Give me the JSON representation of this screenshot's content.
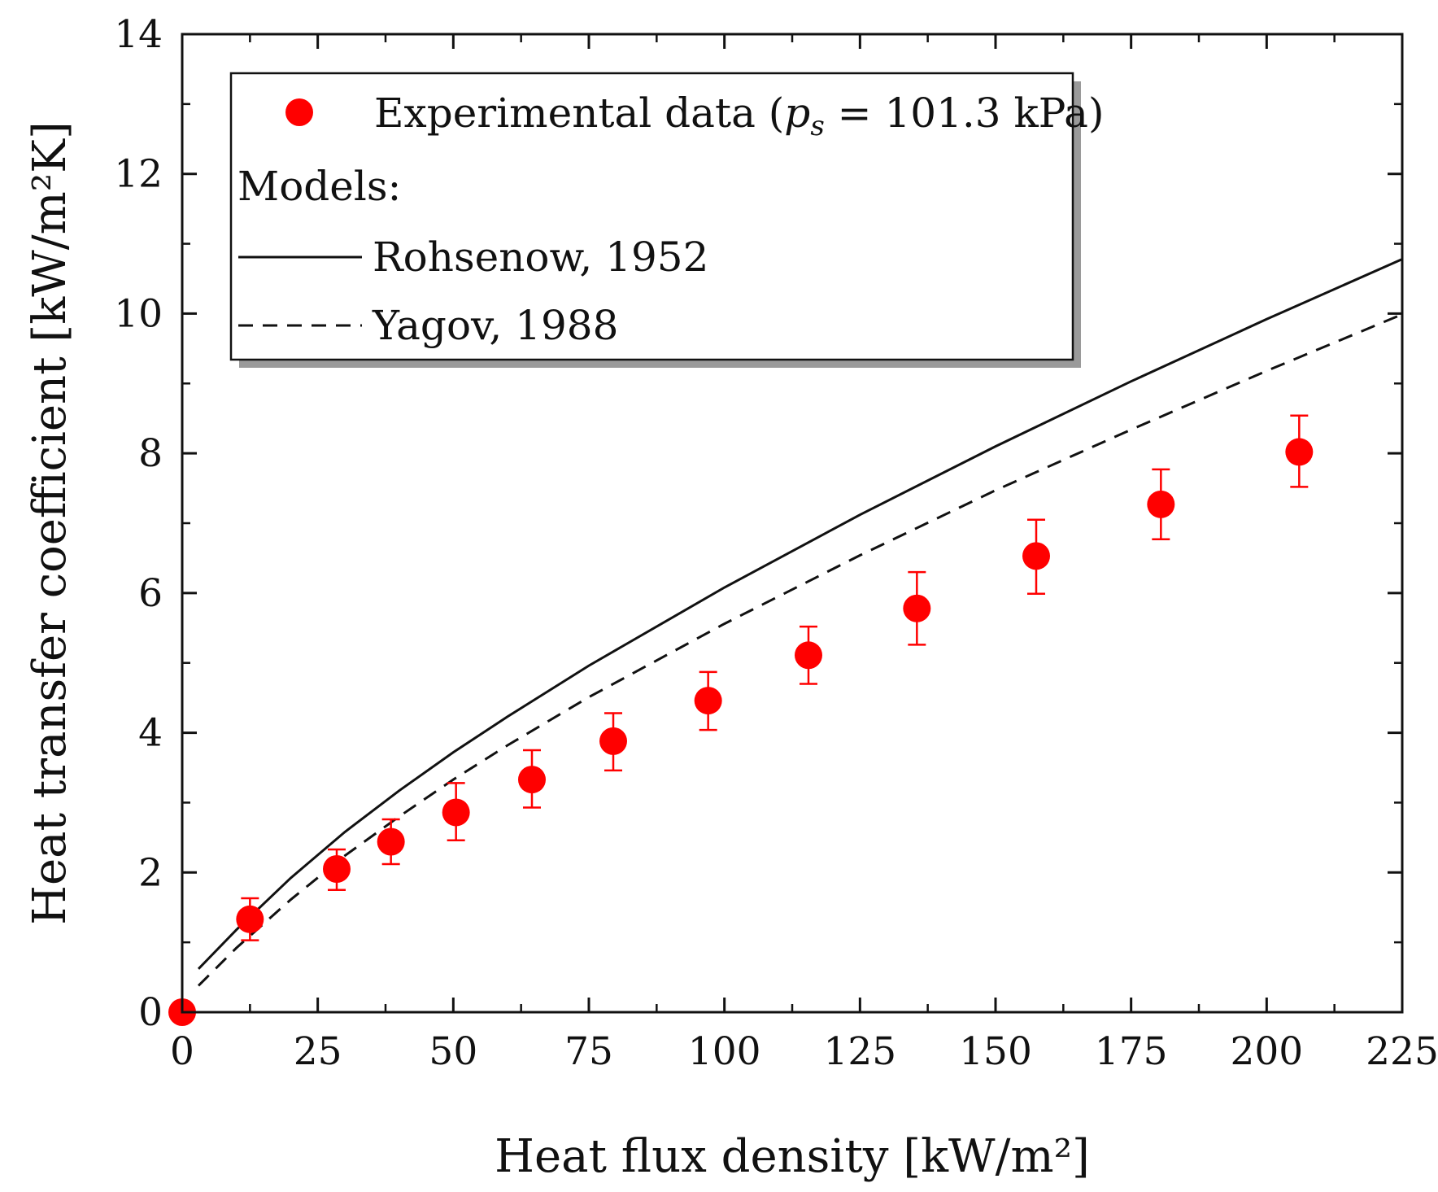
{
  "chart_data": {
    "type": "scatter",
    "xlabel": "Heat flux density [kW/m²]",
    "ylabel": "Heat transfer coefficient [kW/m²K]",
    "xlim": [
      0,
      225
    ],
    "ylim": [
      0,
      14
    ],
    "xticks": [
      0,
      25,
      50,
      75,
      100,
      125,
      150,
      175,
      200,
      225
    ],
    "yticks": [
      0,
      2,
      4,
      6,
      8,
      10,
      12,
      14
    ],
    "grid": false,
    "legend_position": "top-left",
    "legend": {
      "experimental": "Experimental data (",
      "experimental_p": "p",
      "experimental_sub": "s",
      "experimental_value": " = 101.3 kPa)",
      "models_heading": "Models:",
      "rohsenow": "Rohsenow, 1952",
      "yagov": "Yagov, 1988"
    },
    "series": [
      {
        "name": "Experimental data (ps = 101.3 kPa)",
        "style": "marker",
        "color": "#ff0000",
        "x": [
          0,
          12.5,
          28.5,
          38.5,
          50.5,
          64.5,
          79.5,
          97,
          115.5,
          135.5,
          157.5,
          180.5,
          206
        ],
        "y": [
          0,
          1.33,
          2.05,
          2.44,
          2.86,
          3.33,
          3.88,
          4.46,
          5.11,
          5.78,
          6.53,
          7.27,
          8.02
        ],
        "yerr_low": [
          0,
          0.3,
          0.3,
          0.32,
          0.4,
          0.4,
          0.42,
          0.42,
          0.41,
          0.52,
          0.54,
          0.5,
          0.5
        ],
        "yerr_high": [
          0,
          0.3,
          0.28,
          0.32,
          0.42,
          0.42,
          0.4,
          0.41,
          0.41,
          0.52,
          0.52,
          0.5,
          0.52
        ]
      },
      {
        "name": "Rohsenow, 1952",
        "style": "solid",
        "color": "#111111",
        "x": [
          3,
          10,
          20,
          30,
          40,
          50,
          60,
          75,
          100,
          125,
          150,
          175,
          200,
          225
        ],
        "y": [
          0.62,
          1.18,
          1.92,
          2.58,
          3.17,
          3.72,
          4.23,
          4.96,
          6.08,
          7.12,
          8.1,
          9.03,
          9.92,
          10.78
        ]
      },
      {
        "name": "Yagov, 1988",
        "style": "dashed",
        "color": "#111111",
        "x": [
          3,
          10,
          20,
          30,
          40,
          50,
          60,
          75,
          100,
          125,
          150,
          175,
          200,
          225
        ],
        "y": [
          0.38,
          0.92,
          1.61,
          2.24,
          2.8,
          3.33,
          3.82,
          4.51,
          5.56,
          6.54,
          7.47,
          8.34,
          9.18,
          9.99
        ]
      }
    ]
  }
}
